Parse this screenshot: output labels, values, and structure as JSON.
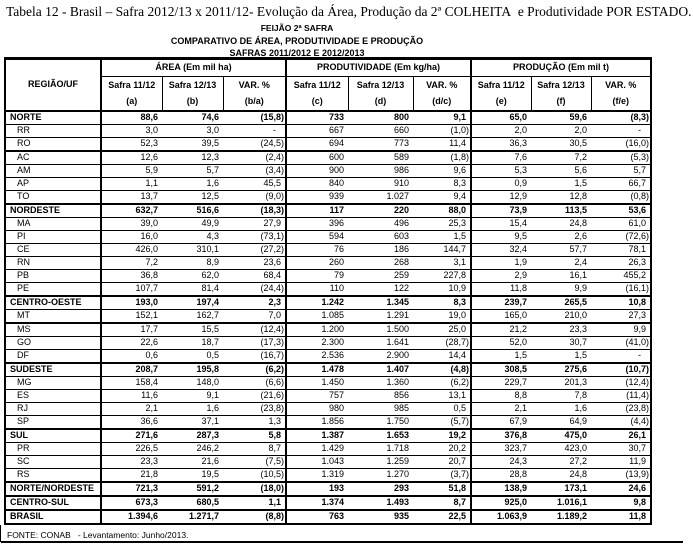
{
  "title": "Tabela 12 - Brasil – Safra 2012/13 x 2011/12- Evolução da Área, Produção da 2ª COLHEITA  e Produtividade POR ESTADO.",
  "subtitles": {
    "line1": "FEIJÃO 2ª SAFRA",
    "line2": "COMPARATIVO DE ÁREA, PRODUTIVIDADE E PRODUÇÃO",
    "line3": "SAFRAS 2011/2012 E 2012/2013"
  },
  "table": {
    "region_header": "REGIÃO/UF",
    "groups": [
      {
        "label": "ÁREA (Em mil ha)",
        "cols": [
          {
            "l1": "Safra 11/12",
            "l2": "(a)"
          },
          {
            "l1": "Safra 12/13",
            "l2": "(b)"
          },
          {
            "l1": "VAR. %",
            "l2": "(b/a)"
          }
        ]
      },
      {
        "label": "PRODUTIVIDADE (Em kg/ha)",
        "cols": [
          {
            "l1": "Safra 11/12",
            "l2": "(c)"
          },
          {
            "l1": "Safra 12/13",
            "l2": "(d)"
          },
          {
            "l1": "VAR. %",
            "l2": "(d/c)"
          }
        ]
      },
      {
        "label": "PRODUÇÃO (Em mil t)",
        "cols": [
          {
            "l1": "Safra 11/12",
            "l2": "(e)"
          },
          {
            "l1": "Safra 12/13",
            "l2": "(f)"
          },
          {
            "l1": "VAR. %",
            "l2": "(f/e)"
          }
        ]
      }
    ],
    "rows": [
      {
        "label": "NORTE",
        "type": "region",
        "values": [
          "88,6",
          "74,6",
          "(15,8)",
          "733",
          "800",
          "9,1",
          "65,0",
          "59,6",
          "(8,3)"
        ]
      },
      {
        "label": "RR",
        "type": "state",
        "values": [
          "3,0",
          "3,0",
          "-",
          "667",
          "660",
          "(1,0)",
          "2,0",
          "2,0",
          "-"
        ]
      },
      {
        "label": "RO",
        "type": "state",
        "thick_bottom": true,
        "values": [
          "52,3",
          "39,5",
          "(24,5)",
          "694",
          "773",
          "11,4",
          "36,3",
          "30,5",
          "(16,0)"
        ]
      },
      {
        "label": "AC",
        "type": "state",
        "values": [
          "12,6",
          "12,3",
          "(2,4)",
          "600",
          "589",
          "(1,8)",
          "7,6",
          "7,2",
          "(5,3)"
        ]
      },
      {
        "label": "AM",
        "type": "state",
        "values": [
          "5,9",
          "5,7",
          "(3,4)",
          "900",
          "986",
          "9,6",
          "5,3",
          "5,6",
          "5,7"
        ]
      },
      {
        "label": "AP",
        "type": "state",
        "values": [
          "1,1",
          "1,6",
          "45,5",
          "840",
          "910",
          "8,3",
          "0,9",
          "1,5",
          "66,7"
        ]
      },
      {
        "label": "TO",
        "type": "state",
        "values": [
          "13,7",
          "12,5",
          "(9,0)",
          "939",
          "1.027",
          "9,4",
          "12,9",
          "12,8",
          "(0,8)"
        ]
      },
      {
        "label": "NORDESTE",
        "type": "region",
        "values": [
          "632,7",
          "516,6",
          "(18,3)",
          "117",
          "220",
          "88,0",
          "73,9",
          "113,5",
          "53,6"
        ]
      },
      {
        "label": "MA",
        "type": "state",
        "values": [
          "39,0",
          "49,9",
          "27,9",
          "396",
          "496",
          "25,3",
          "15,4",
          "24,8",
          "61,0"
        ]
      },
      {
        "label": "PI",
        "type": "state",
        "values": [
          "16,0",
          "4,3",
          "(73,1)",
          "594",
          "603",
          "1,5",
          "9,5",
          "2,6",
          "(72,6)"
        ]
      },
      {
        "label": "CE",
        "type": "state",
        "values": [
          "426,0",
          "310,1",
          "(27,2)",
          "76",
          "186",
          "144,7",
          "32,4",
          "57,7",
          "78,1"
        ]
      },
      {
        "label": "RN",
        "type": "state",
        "values": [
          "7,2",
          "8,9",
          "23,6",
          "260",
          "268",
          "3,1",
          "1,9",
          "2,4",
          "26,3"
        ]
      },
      {
        "label": "PB",
        "type": "state",
        "values": [
          "36,8",
          "62,0",
          "68,4",
          "79",
          "259",
          "227,8",
          "2,9",
          "16,1",
          "455,2"
        ]
      },
      {
        "label": "PE",
        "type": "state",
        "values": [
          "107,7",
          "81,4",
          "(24,4)",
          "110",
          "122",
          "10,9",
          "11,8",
          "9,9",
          "(16,1)"
        ]
      },
      {
        "label": "CENTRO-OESTE",
        "type": "region",
        "values": [
          "193,0",
          "197,4",
          "2,3",
          "1.242",
          "1.345",
          "8,3",
          "239,7",
          "265,5",
          "10,8"
        ]
      },
      {
        "label": "MT",
        "type": "state",
        "thick_bottom": true,
        "values": [
          "152,1",
          "162,7",
          "7,0",
          "1.085",
          "1.291",
          "19,0",
          "165,0",
          "210,0",
          "27,3"
        ]
      },
      {
        "label": "MS",
        "type": "state",
        "values": [
          "17,7",
          "15,5",
          "(12,4)",
          "1.200",
          "1.500",
          "25,0",
          "21,2",
          "23,3",
          "9,9"
        ]
      },
      {
        "label": "GO",
        "type": "state",
        "values": [
          "22,6",
          "18,7",
          "(17,3)",
          "2.300",
          "1.641",
          "(28,7)",
          "52,0",
          "30,7",
          "(41,0)"
        ]
      },
      {
        "label": "DF",
        "type": "state",
        "values": [
          "0,6",
          "0,5",
          "(16,7)",
          "2.536",
          "2.900",
          "14,4",
          "1,5",
          "1,5",
          "-"
        ]
      },
      {
        "label": "SUDESTE",
        "type": "region",
        "values": [
          "208,7",
          "195,8",
          "(6,2)",
          "1.478",
          "1.407",
          "(4,8)",
          "308,5",
          "275,6",
          "(10,7)"
        ]
      },
      {
        "label": "MG",
        "type": "state",
        "values": [
          "158,4",
          "148,0",
          "(6,6)",
          "1.450",
          "1.360",
          "(6,2)",
          "229,7",
          "201,3",
          "(12,4)"
        ]
      },
      {
        "label": "ES",
        "type": "state",
        "values": [
          "11,6",
          "9,1",
          "(21,6)",
          "757",
          "856",
          "13,1",
          "8,8",
          "7,8",
          "(11,4)"
        ]
      },
      {
        "label": "RJ",
        "type": "state",
        "values": [
          "2,1",
          "1,6",
          "(23,8)",
          "980",
          "985",
          "0,5",
          "2,1",
          "1,6",
          "(23,8)"
        ]
      },
      {
        "label": "SP",
        "type": "state",
        "values": [
          "36,6",
          "37,1",
          "1,3",
          "1.856",
          "1.750",
          "(5,7)",
          "67,9",
          "64,9",
          "(4,4)"
        ]
      },
      {
        "label": "SUL",
        "type": "region",
        "values": [
          "271,6",
          "287,3",
          "5,8",
          "1.387",
          "1.653",
          "19,2",
          "376,8",
          "475,0",
          "26,1"
        ]
      },
      {
        "label": "PR",
        "type": "state",
        "values": [
          "226,5",
          "246,2",
          "8,7",
          "1.429",
          "1.718",
          "20,2",
          "323,7",
          "423,0",
          "30,7"
        ]
      },
      {
        "label": "SC",
        "type": "state",
        "values": [
          "23,3",
          "21,6",
          "(7,5)",
          "1.043",
          "1.259",
          "20,7",
          "24,3",
          "27,2",
          "11,9"
        ]
      },
      {
        "label": "RS",
        "type": "state",
        "values": [
          "21,8",
          "19,5",
          "(10,5)",
          "1.319",
          "1.270",
          "(3,7)",
          "28,8",
          "24,8",
          "(13,9)"
        ]
      },
      {
        "label": "NORTE/NORDESTE",
        "type": "region",
        "values": [
          "721,3",
          "591,2",
          "(18,0)",
          "193",
          "293",
          "51,8",
          "138,9",
          "173,1",
          "24,6"
        ]
      },
      {
        "label": "CENTRO-SUL",
        "type": "region",
        "values": [
          "673,3",
          "680,5",
          "1,1",
          "1.374",
          "1.493",
          "8,7",
          "925,0",
          "1.016,1",
          "9,8"
        ]
      },
      {
        "label": "BRASIL",
        "type": "region",
        "values": [
          "1.394,6",
          "1.271,7",
          "(8,8)",
          "763",
          "935",
          "22,5",
          "1.063,9",
          "1.189,2",
          "11,8"
        ]
      }
    ]
  },
  "footer": {
    "source": "FONTE: CONAB   - Levantamento: Junho/2013."
  }
}
